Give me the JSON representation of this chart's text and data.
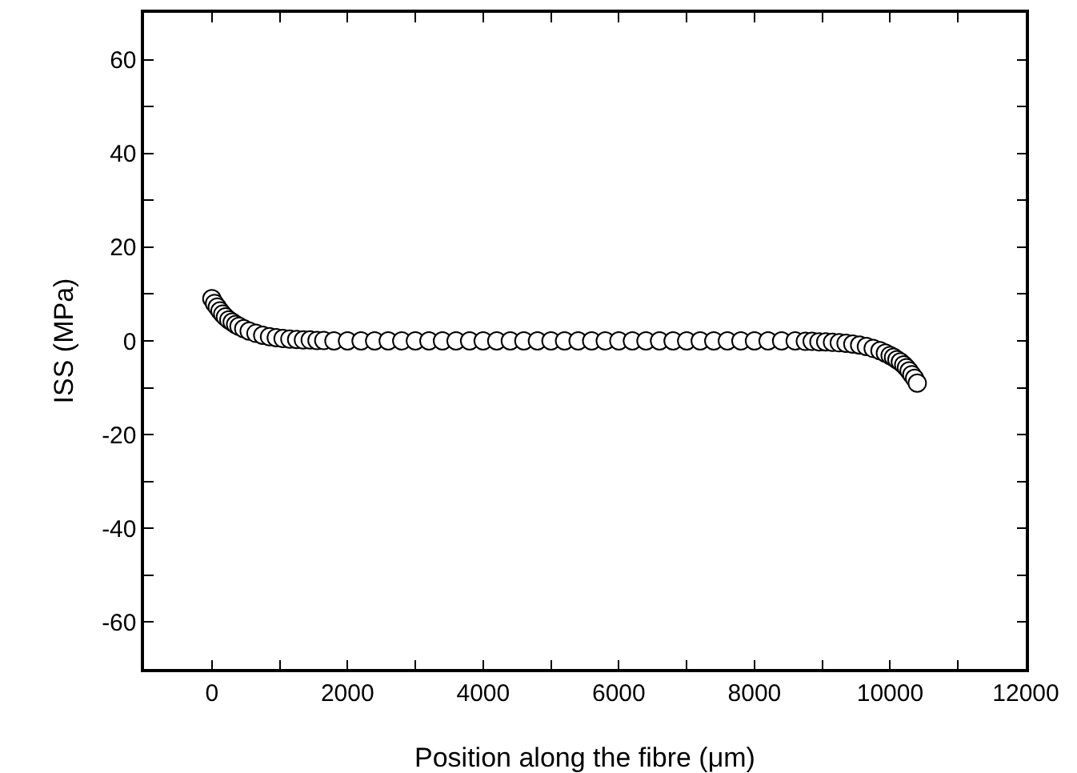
{
  "chart_data": {
    "type": "scatter",
    "xlabel": "Position along the fibre (μm)",
    "ylabel": "ISS (MPa)",
    "marker": "circle",
    "x": [
      0,
      40,
      80,
      120,
      160,
      200,
      250,
      300,
      350,
      400,
      470,
      550,
      650,
      750,
      850,
      950,
      1050,
      1150,
      1250,
      1350,
      1450,
      1550,
      1650,
      1800,
      2000,
      2200,
      2400,
      2600,
      2800,
      3000,
      3200,
      3400,
      3600,
      3800,
      4000,
      4200,
      4400,
      4600,
      4800,
      5000,
      5200,
      5400,
      5600,
      5800,
      6000,
      6200,
      6400,
      6600,
      6800,
      7000,
      7200,
      7400,
      7600,
      7800,
      8000,
      8200,
      8400,
      8600,
      8750,
      8850,
      8950,
      9050,
      9150,
      9250,
      9350,
      9450,
      9550,
      9650,
      9750,
      9850,
      9930,
      10000,
      10050,
      10100,
      10150,
      10200,
      10240,
      10280,
      10320,
      10360,
      10400
    ],
    "series": [
      {
        "color": "#000000",
        "values": [
          9,
          8,
          7.2,
          6.4,
          5.7,
          5.1,
          4.5,
          4,
          3.5,
          3.1,
          2.6,
          2.1,
          1.6,
          1.2,
          0.9,
          0.7,
          0.5,
          0.4,
          0.3,
          0.2,
          0.2,
          0.1,
          0.1,
          0,
          0,
          0,
          0,
          0,
          0,
          0,
          0,
          0,
          0,
          0,
          0,
          0,
          0,
          0,
          0,
          0,
          0,
          0,
          0,
          0,
          0,
          0,
          0,
          0,
          0,
          0,
          0,
          0,
          0,
          0,
          0,
          0,
          0,
          0,
          -0.1,
          -0.1,
          -0.2,
          -0.2,
          -0.3,
          -0.4,
          -0.5,
          -0.7,
          -0.9,
          -1.2,
          -1.6,
          -2.1,
          -2.6,
          -3.1,
          -3.5,
          -4,
          -4.5,
          -5.1,
          -5.7,
          -6.4,
          -7.2,
          -8,
          -9
        ]
      }
    ],
    "xlim": [
      -1000,
      12000
    ],
    "xticks": [
      0,
      {
        "value": 1000,
        "label": null
      },
      2000,
      {
        "value": 3000,
        "label": null
      },
      4000,
      {
        "value": 5000,
        "label": null
      },
      6000,
      {
        "value": 7000,
        "label": null
      },
      8000,
      {
        "value": 9000,
        "label": null
      },
      10000,
      {
        "value": 11000,
        "label": null
      },
      12000
    ],
    "ylim": [
      -70,
      70
    ],
    "yticks": [
      -60,
      {
        "value": -50,
        "label": null
      },
      -40,
      {
        "value": -30,
        "label": null
      },
      -20,
      {
        "value": -10,
        "label": null
      },
      0,
      {
        "value": 10,
        "label": null
      },
      20,
      {
        "value": 30,
        "label": null
      },
      40,
      {
        "value": 50,
        "label": null
      },
      60
    ]
  }
}
